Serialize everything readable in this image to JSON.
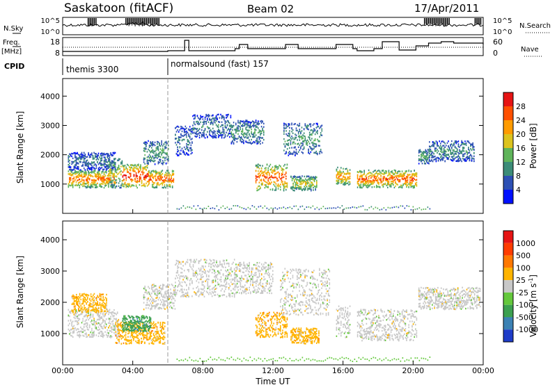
{
  "header": {
    "station": "Saskatoon (fitACF)",
    "beam": "Beam 02",
    "date": "17/Apr/2011"
  },
  "noise_panel": {
    "left_label": "N.Sky",
    "left_ticks": [
      "10^5",
      "10^0"
    ],
    "right_ticks": [
      "10^5",
      "10^0"
    ],
    "right_label": "N.Search"
  },
  "freq_panel": {
    "left_label_1": "Freq.",
    "left_label_2": "[MHz]",
    "left_ticks": [
      "18",
      "8"
    ],
    "right_ticks": [
      "60",
      "0"
    ],
    "right_label": "Nave"
  },
  "cpid": {
    "label": "CPID",
    "segments": [
      {
        "name": "themis 3300",
        "start_hour": 0
      },
      {
        "name": "normalsound (fast) 157",
        "start_hour": 6
      }
    ]
  },
  "chart_data": [
    {
      "type": "heatmap",
      "name": "power",
      "ylabel": "Slant Range [km]",
      "ylim": [
        0,
        4600
      ],
      "yticks": [
        "1000",
        "2000",
        "3000",
        "4000"
      ],
      "xlim_hours": [
        0,
        24
      ],
      "colorbar_label": "Power [dB]",
      "colorbar_ticks": [
        "4",
        "8",
        "12",
        "16",
        "20",
        "24",
        "28"
      ],
      "colorbar_range": [
        0,
        32
      ],
      "colors": [
        "#0010ff",
        "#2d50b4",
        "#3c8c78",
        "#5fb45a",
        "#dcc31e",
        "#ff9b00",
        "#ff5000",
        "#e61414"
      ],
      "features": [
        {
          "t0": 0.3,
          "t1": 3.0,
          "r0": 900,
          "r1": 1500,
          "level": 26
        },
        {
          "t0": 0.3,
          "t1": 3.0,
          "r0": 1500,
          "r1": 2100,
          "level": 9
        },
        {
          "t0": 2.6,
          "t1": 3.4,
          "r0": 900,
          "r1": 1900,
          "level": 18
        },
        {
          "t0": 3.4,
          "t1": 4.9,
          "r0": 900,
          "r1": 1700,
          "level": 30
        },
        {
          "t0": 4.9,
          "t1": 6.3,
          "r0": 900,
          "r1": 1500,
          "level": 27
        },
        {
          "t0": 4.6,
          "t1": 6.0,
          "r0": 1700,
          "r1": 2500,
          "level": 13
        },
        {
          "t0": 6.4,
          "t1": 7.4,
          "r0": 2000,
          "r1": 3000,
          "level": 9
        },
        {
          "t0": 7.4,
          "t1": 9.6,
          "r0": 2600,
          "r1": 3400,
          "level": 10
        },
        {
          "t0": 9.6,
          "t1": 11.5,
          "r0": 2400,
          "r1": 3200,
          "level": 12
        },
        {
          "t0": 11.0,
          "t1": 12.8,
          "r0": 800,
          "r1": 1700,
          "level": 27
        },
        {
          "t0": 12.6,
          "t1": 14.8,
          "r0": 2000,
          "r1": 3100,
          "level": 12
        },
        {
          "t0": 13.0,
          "t1": 14.5,
          "r0": 800,
          "r1": 1300,
          "level": 19
        },
        {
          "t0": 15.6,
          "t1": 16.4,
          "r0": 1000,
          "r1": 1600,
          "level": 24
        },
        {
          "t0": 16.8,
          "t1": 20.2,
          "r0": 900,
          "r1": 1500,
          "level": 27
        },
        {
          "t0": 20.3,
          "t1": 20.9,
          "r0": 1700,
          "r1": 2200,
          "level": 13
        },
        {
          "t0": 20.9,
          "t1": 23.5,
          "r0": 1800,
          "r1": 2500,
          "level": 11
        }
      ]
    },
    {
      "type": "heatmap",
      "name": "velocity",
      "ylabel": "Slant Range [km]",
      "ylim": [
        0,
        4600
      ],
      "yticks": [
        "1000",
        "2000",
        "3000",
        "4000"
      ],
      "xlim_hours": [
        0,
        24
      ],
      "xticks": [
        "00:00",
        "04:00",
        "08:00",
        "12:00",
        "16:00",
        "20:00",
        "00:00"
      ],
      "xlabel": "Time UT",
      "colorbar_label": "Velocity [m s",
      "colorbar_label_sup": "-1",
      "colorbar_label_end": "]",
      "colorbar_ticks": [
        "1000",
        "500",
        "100",
        "25",
        "-25",
        "-100",
        "-500",
        "-1000"
      ],
      "colors": [
        "#1e3cc8",
        "#3c82b4",
        "#3ca050",
        "#64c83c",
        "#c8c8c8",
        "#ffb400",
        "#ff7800",
        "#ff3c00",
        "#e61414"
      ],
      "features": [
        {
          "t0": 0.3,
          "t1": 3.2,
          "r0": 900,
          "r1": 1800,
          "cls": 4
        },
        {
          "t0": 0.5,
          "t1": 2.5,
          "r0": 1700,
          "r1": 2300,
          "cls": 5
        },
        {
          "t0": 3.0,
          "t1": 5.8,
          "r0": 700,
          "r1": 1400,
          "cls": 5
        },
        {
          "t0": 3.4,
          "t1": 5.0,
          "r0": 1100,
          "r1": 1600,
          "cls": 2
        },
        {
          "t0": 4.6,
          "t1": 6.4,
          "r0": 1800,
          "r1": 2600,
          "cls": 4
        },
        {
          "t0": 6.4,
          "t1": 9.8,
          "r0": 2200,
          "r1": 3400,
          "cls": 4
        },
        {
          "t0": 9.8,
          "t1": 12.0,
          "r0": 2300,
          "r1": 3300,
          "cls": 4
        },
        {
          "t0": 11.0,
          "t1": 12.8,
          "r0": 900,
          "r1": 1700,
          "cls": 5
        },
        {
          "t0": 12.4,
          "t1": 15.2,
          "r0": 1600,
          "r1": 3100,
          "cls": 4
        },
        {
          "t0": 13.0,
          "t1": 14.6,
          "r0": 700,
          "r1": 1200,
          "cls": 5
        },
        {
          "t0": 15.6,
          "t1": 16.4,
          "r0": 900,
          "r1": 1900,
          "cls": 4
        },
        {
          "t0": 16.8,
          "t1": 20.2,
          "r0": 800,
          "r1": 1800,
          "cls": 4
        },
        {
          "t0": 20.3,
          "t1": 23.8,
          "r0": 1800,
          "r1": 2500,
          "cls": 4
        }
      ]
    }
  ]
}
